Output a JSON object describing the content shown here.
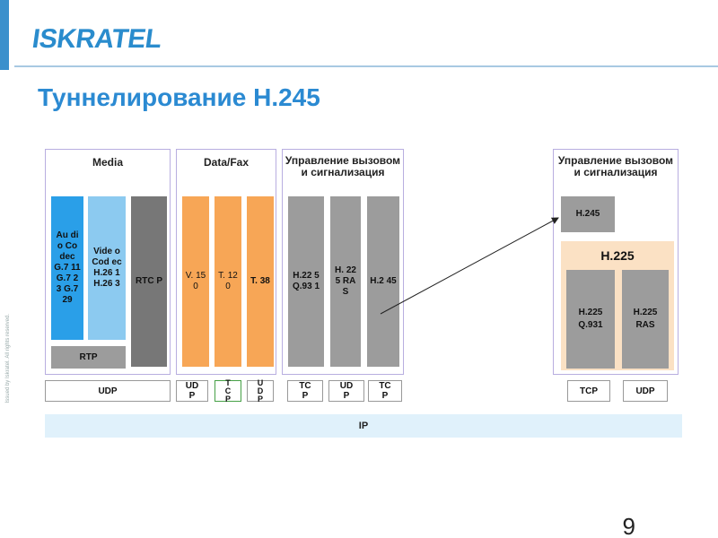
{
  "header": {
    "logo_text": "ISKRATEL"
  },
  "title": "Туннелирование H.245",
  "footer": {
    "vertical_note": "Issued by Iskratel. All rights reserved.",
    "page_number": "9"
  },
  "panels": {
    "media": {
      "title": "Media",
      "audio_codec": "Au dio Co dec G.7 11 G.7 23 G.7 29",
      "video_codec": "Vide o Cod ec H.26 1 H.26 3",
      "rtcp": "RTC P",
      "rtp": "RTP",
      "udp": "UDP"
    },
    "datafax": {
      "title": "Data/Fax",
      "v150": "V. 15 0",
      "t120": "T. 12 0",
      "t38": "T. 38",
      "udp": "UD P",
      "tcp": "T C P",
      "udp2": "U D P"
    },
    "control_left": {
      "title": "Управление вызовом и сигнализация",
      "h225_q931": "H.22 5 Q.93 1",
      "h225_ras": "H. 22 5 RA S",
      "h245": "H.2 45",
      "tcp1": "TC P",
      "udp": "UD P",
      "tcp2": "TC P"
    },
    "control_right": {
      "title": "Управление вызовом и сигнализация",
      "h245": "H.245",
      "h225": "H.225",
      "h225_q931": "H.225 Q.931",
      "h225_ras": "H.225 RAS",
      "tcp": "TCP",
      "udp": "UDP"
    }
  },
  "ip_label": "IP",
  "colors": {
    "brand_blue": "#2a8ccd",
    "title_blue": "#2b8ad2",
    "audio_blue": "#2a9fe8",
    "video_blue": "#8ccaf0",
    "orange": "#f7a656",
    "peach": "#fbe1c4",
    "gray": "#9c9c9c",
    "ip_bar": "#e0f1fb"
  }
}
